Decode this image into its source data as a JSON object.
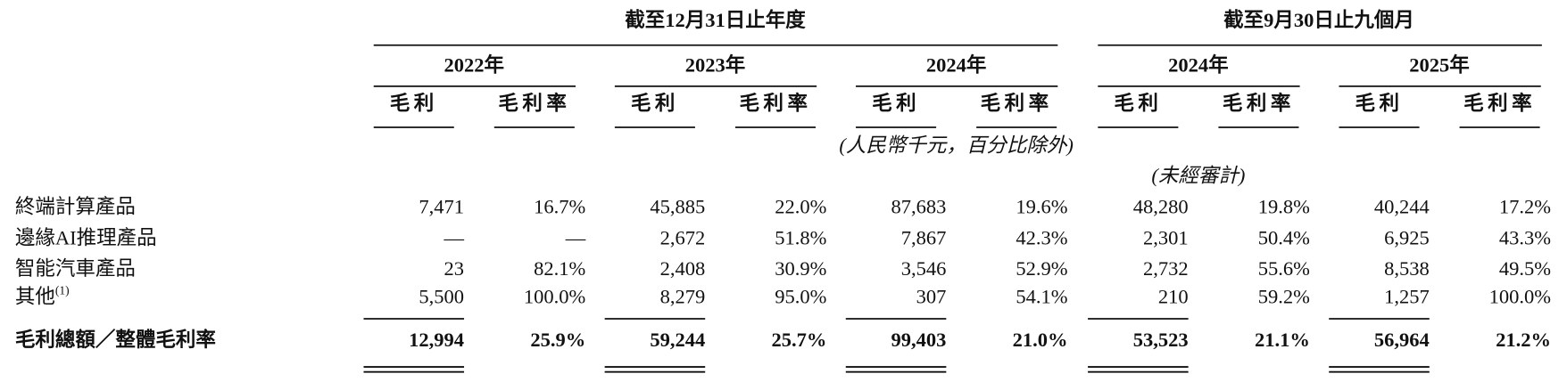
{
  "header": {
    "groups": [
      "截至12月31日止年度",
      "截至9月30日止九個月"
    ],
    "years": [
      "2022年",
      "2023年",
      "2024年",
      "2024年",
      "2025年"
    ],
    "subheaders": [
      "毛利",
      "毛利率"
    ],
    "unit_note": "(人民幣千元，百分比除外)",
    "unaudited_note": "(未經審計)"
  },
  "table": {
    "rows": [
      {
        "label": "終端計算產品",
        "cells": [
          "7,471",
          "16.7%",
          "45,885",
          "22.0%",
          "87,683",
          "19.6%",
          "48,280",
          "19.8%",
          "40,244",
          "17.2%"
        ]
      },
      {
        "label": "邊緣AI推理產品",
        "cells": [
          "—",
          "—",
          "2,672",
          "51.8%",
          "7,867",
          "42.3%",
          "2,301",
          "50.4%",
          "6,925",
          "43.3%"
        ]
      },
      {
        "label": "智能汽車產品",
        "cells": [
          "23",
          "82.1%",
          "2,408",
          "30.9%",
          "3,546",
          "52.9%",
          "2,732",
          "55.6%",
          "8,538",
          "49.5%"
        ]
      },
      {
        "label": "其他",
        "note": "(1)",
        "cells": [
          "5,500",
          "100.0%",
          "8,279",
          "95.0%",
          "307",
          "54.1%",
          "210",
          "59.2%",
          "1,257",
          "100.0%"
        ]
      }
    ],
    "total": {
      "label": "毛利總額／整體毛利率",
      "cells": [
        "12,994",
        "25.9%",
        "59,244",
        "25.7%",
        "99,403",
        "21.0%",
        "53,523",
        "21.1%",
        "56,964",
        "21.2%"
      ]
    }
  }
}
